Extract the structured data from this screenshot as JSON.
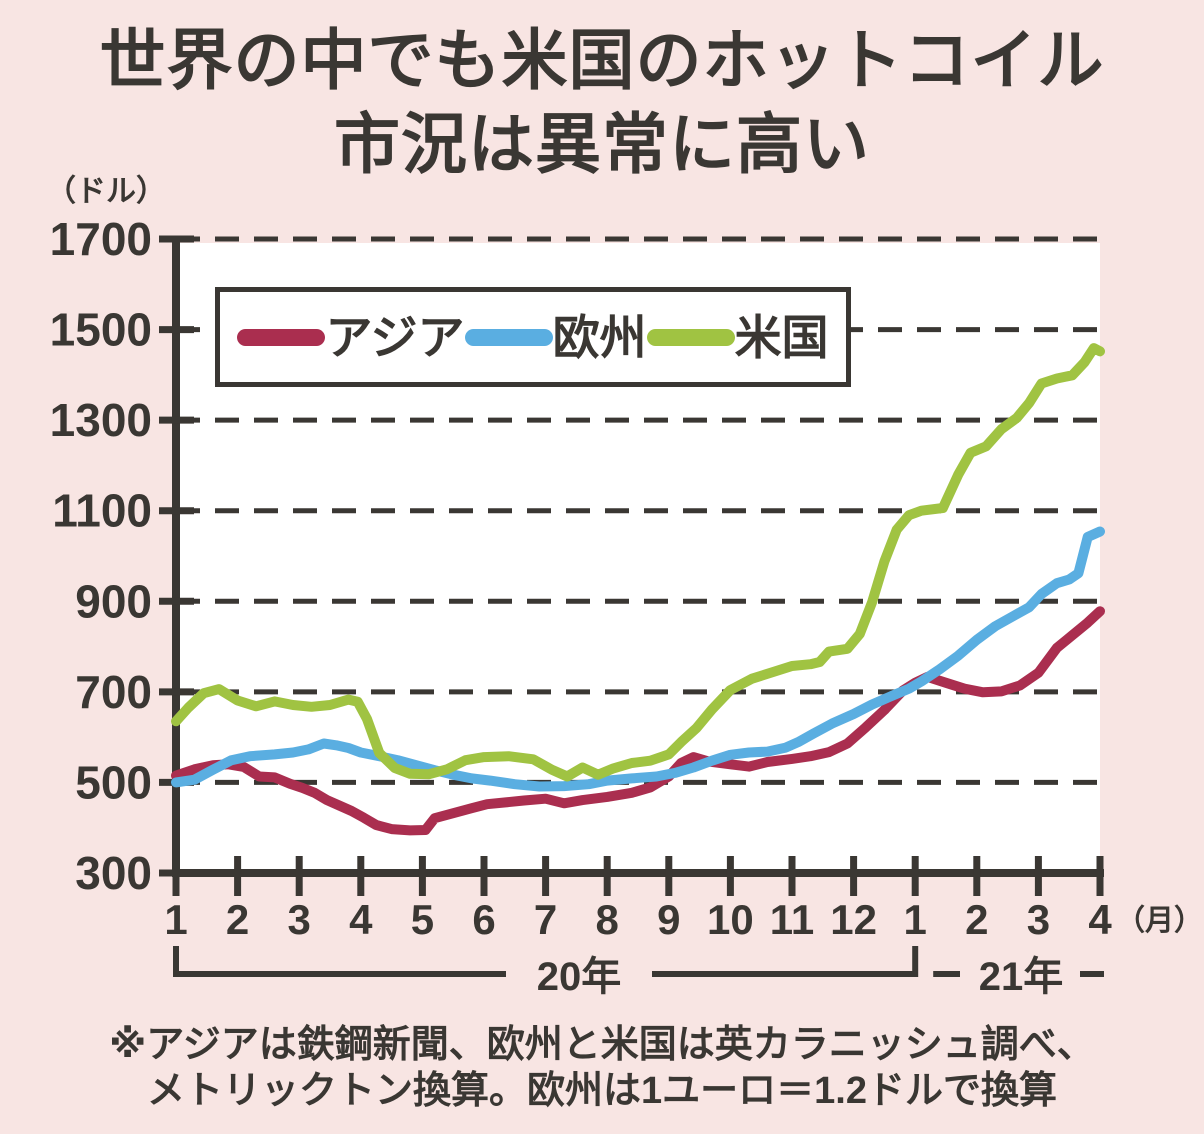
{
  "title": {
    "line1": "世界の中でも米国のホットコイル",
    "line2": "市況は異常に高い"
  },
  "y_axis": {
    "unit_label": "（ドル）",
    "tick_values": [
      300,
      500,
      700,
      900,
      1100,
      1300,
      1500,
      1700
    ],
    "gridline_values": [
      500,
      700,
      900,
      1100,
      1300,
      1500,
      1700
    ]
  },
  "x_axis": {
    "month_labels": [
      "1",
      "2",
      "3",
      "4",
      "5",
      "6",
      "7",
      "8",
      "9",
      "10",
      "11",
      "12",
      "1",
      "2",
      "3",
      "4"
    ],
    "unit_label": "（月）",
    "year_groups": [
      {
        "label": "20年",
        "start_month_index": 1,
        "end_month_index": 13
      },
      {
        "label": "21年",
        "start_month_index": 13,
        "end_month_index": 16
      }
    ]
  },
  "legend": [
    {
      "label": "アジア",
      "color": "#aa2e4f"
    },
    {
      "label": "欧州",
      "color": "#5aaee1"
    },
    {
      "label": "米国",
      "color": "#a0c342"
    }
  ],
  "source_note": {
    "line1": "※アジアは鉄鋼新聞、欧州と米国は英カラニッシュ調べ、",
    "line2": "メトリックトン換算。欧州は1ユーロ＝1.2ドルで換算"
  },
  "colors": {
    "background": "#f8e5e3",
    "plot_background": "#ffffff",
    "axis_and_text": "#3a3733",
    "asia_line": "#aa2e4f",
    "europe_line": "#5aaee1",
    "us_line": "#a0c342"
  },
  "chart_data": {
    "type": "line",
    "title": "世界の中でも米国のホットコイル市況は異常に高い",
    "ylabel": "（ドル）",
    "ylim": [
      300,
      1700
    ],
    "grid": "dashed horizontal",
    "legend_position": "top-left box inside plot",
    "x_unit": "month index: 1 = 2020年1月 … 13 = 2021年1月, 16 = 2021年4月",
    "series": [
      {
        "name": "アジア",
        "color": "#aa2e4f",
        "points": [
          [
            1,
            515
          ],
          [
            1.3,
            529
          ],
          [
            1.6,
            538
          ],
          [
            1.85,
            540
          ],
          [
            2.1,
            534
          ],
          [
            2.35,
            513
          ],
          [
            2.6,
            511
          ],
          [
            2.85,
            497
          ],
          [
            3.05,
            488
          ],
          [
            3.25,
            477
          ],
          [
            3.45,
            461
          ],
          [
            3.65,
            449
          ],
          [
            3.85,
            437
          ],
          [
            4.05,
            422
          ],
          [
            4.25,
            406
          ],
          [
            4.5,
            397
          ],
          [
            4.8,
            394
          ],
          [
            5.05,
            395
          ],
          [
            5.2,
            421
          ],
          [
            5.5,
            432
          ],
          [
            5.8,
            443
          ],
          [
            6.05,
            452
          ],
          [
            6.35,
            456
          ],
          [
            6.65,
            460
          ],
          [
            7,
            464
          ],
          [
            7.3,
            454
          ],
          [
            7.6,
            461
          ],
          [
            8,
            468
          ],
          [
            8.4,
            477
          ],
          [
            8.7,
            489
          ],
          [
            9,
            513
          ],
          [
            9.2,
            543
          ],
          [
            9.4,
            556
          ],
          [
            9.65,
            546
          ],
          [
            10,
            540
          ],
          [
            10.3,
            535
          ],
          [
            10.6,
            545
          ],
          [
            11,
            552
          ],
          [
            11.3,
            558
          ],
          [
            11.6,
            567
          ],
          [
            11.9,
            586
          ],
          [
            12.2,
            622
          ],
          [
            12.5,
            660
          ],
          [
            12.8,
            703
          ],
          [
            13,
            720
          ],
          [
            13.2,
            733
          ],
          [
            13.5,
            720
          ],
          [
            13.8,
            707
          ],
          [
            14.1,
            699
          ],
          [
            14.4,
            701
          ],
          [
            14.7,
            714
          ],
          [
            15,
            742
          ],
          [
            15.3,
            797
          ],
          [
            15.55,
            825
          ],
          [
            15.8,
            853
          ],
          [
            16,
            878
          ]
        ]
      },
      {
        "name": "欧州",
        "color": "#5aaee1",
        "points": [
          [
            1,
            500
          ],
          [
            1.3,
            506
          ],
          [
            1.6,
            528
          ],
          [
            1.9,
            549
          ],
          [
            2.2,
            558
          ],
          [
            2.6,
            562
          ],
          [
            2.9,
            566
          ],
          [
            3.15,
            573
          ],
          [
            3.4,
            586
          ],
          [
            3.6,
            582
          ],
          [
            3.8,
            576
          ],
          [
            4,
            566
          ],
          [
            4.3,
            558
          ],
          [
            4.6,
            549
          ],
          [
            4.9,
            538
          ],
          [
            5.2,
            527
          ],
          [
            5.5,
            517
          ],
          [
            5.8,
            509
          ],
          [
            6.1,
            504
          ],
          [
            6.5,
            496
          ],
          [
            6.9,
            491
          ],
          [
            7.3,
            492
          ],
          [
            7.7,
            496
          ],
          [
            8,
            504
          ],
          [
            8.4,
            509
          ],
          [
            8.8,
            513
          ],
          [
            9.1,
            521
          ],
          [
            9.4,
            533
          ],
          [
            9.7,
            548
          ],
          [
            10,
            561
          ],
          [
            10.3,
            566
          ],
          [
            10.6,
            568
          ],
          [
            10.9,
            577
          ],
          [
            11.1,
            589
          ],
          [
            11.35,
            608
          ],
          [
            11.65,
            630
          ],
          [
            12,
            651
          ],
          [
            12.3,
            672
          ],
          [
            12.6,
            690
          ],
          [
            12.9,
            707
          ],
          [
            13.1,
            723
          ],
          [
            13.4,
            750
          ],
          [
            13.7,
            780
          ],
          [
            14,
            815
          ],
          [
            14.3,
            845
          ],
          [
            14.6,
            868
          ],
          [
            14.85,
            887
          ],
          [
            15.05,
            916
          ],
          [
            15.3,
            940
          ],
          [
            15.5,
            948
          ],
          [
            15.65,
            962
          ],
          [
            15.8,
            1042
          ],
          [
            16,
            1054
          ]
        ]
      },
      {
        "name": "米国",
        "color": "#a0c342",
        "points": [
          [
            1,
            635
          ],
          [
            1.2,
            665
          ],
          [
            1.45,
            697
          ],
          [
            1.7,
            706
          ],
          [
            2,
            681
          ],
          [
            2.3,
            668
          ],
          [
            2.6,
            679
          ],
          [
            2.9,
            671
          ],
          [
            3.2,
            667
          ],
          [
            3.5,
            671
          ],
          [
            3.8,
            683
          ],
          [
            3.95,
            678
          ],
          [
            4.1,
            640
          ],
          [
            4.3,
            565
          ],
          [
            4.55,
            532
          ],
          [
            4.8,
            519
          ],
          [
            5.1,
            518
          ],
          [
            5.4,
            529
          ],
          [
            5.7,
            549
          ],
          [
            6,
            556
          ],
          [
            6.4,
            558
          ],
          [
            6.8,
            551
          ],
          [
            7.1,
            528
          ],
          [
            7.35,
            513
          ],
          [
            7.6,
            533
          ],
          [
            7.85,
            517
          ],
          [
            8.1,
            531
          ],
          [
            8.4,
            543
          ],
          [
            8.7,
            548
          ],
          [
            9,
            562
          ],
          [
            9.2,
            589
          ],
          [
            9.45,
            620
          ],
          [
            9.7,
            661
          ],
          [
            10,
            704
          ],
          [
            10.35,
            729
          ],
          [
            10.7,
            744
          ],
          [
            11,
            757
          ],
          [
            11.3,
            761
          ],
          [
            11.45,
            766
          ],
          [
            11.6,
            789
          ],
          [
            11.9,
            795
          ],
          [
            12.1,
            828
          ],
          [
            12.3,
            898
          ],
          [
            12.5,
            988
          ],
          [
            12.7,
            1058
          ],
          [
            12.9,
            1090
          ],
          [
            13.1,
            1100
          ],
          [
            13.45,
            1106
          ],
          [
            13.7,
            1180
          ],
          [
            13.9,
            1228
          ],
          [
            14.15,
            1242
          ],
          [
            14.4,
            1280
          ],
          [
            14.65,
            1305
          ],
          [
            14.85,
            1338
          ],
          [
            15.05,
            1381
          ],
          [
            15.3,
            1392
          ],
          [
            15.55,
            1399
          ],
          [
            15.75,
            1428
          ],
          [
            15.9,
            1459
          ],
          [
            16,
            1452
          ]
        ]
      }
    ]
  }
}
